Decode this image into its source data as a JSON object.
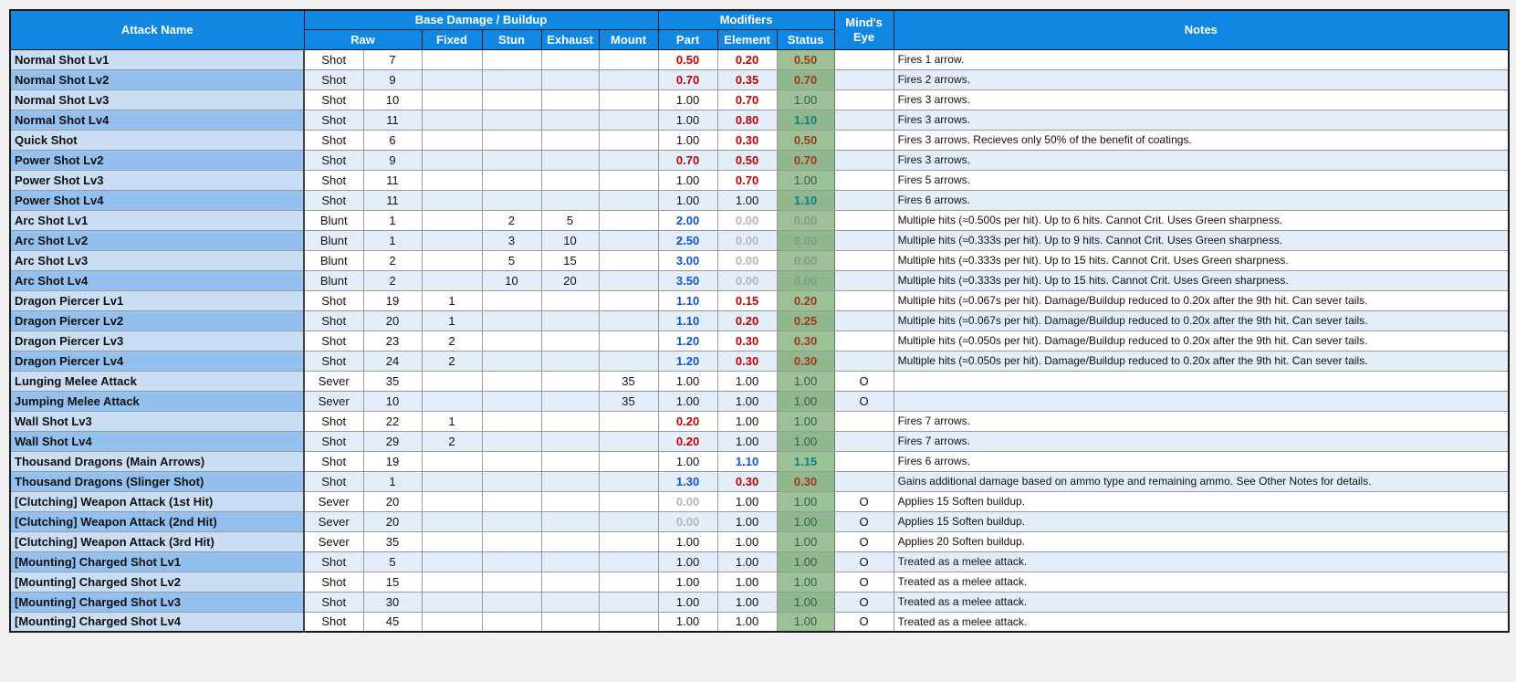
{
  "colors": {
    "header_blue": "#1187e4",
    "name_row_odd": "#c9ddf5",
    "name_row_even": "#93c0ef",
    "data_row_even": "#e4eefa",
    "status_col_odd": "#9cc197",
    "status_col_even": "#91b88c",
    "value_red": "#c00000",
    "value_blue": "#1155cc",
    "value_brick": "#9e3a1c",
    "value_dark_green": "#36603f",
    "value_teal": "#0f7f8d",
    "value_gray": "#b5b5b5"
  },
  "table": {
    "headers": {
      "attack_name": "Attack Name",
      "base_damage": "Base Damage / Buildup",
      "modifiers": "Modifiers",
      "minds_eye": "Mind's Eye",
      "notes": "Notes",
      "raw": "Raw",
      "fixed": "Fixed",
      "stun": "Stun",
      "exhaust": "Exhaust",
      "mount": "Mount",
      "part": "Part",
      "element": "Element",
      "status": "Status"
    },
    "rows": [
      {
        "name": "Normal Shot Lv1",
        "type": "Shot",
        "raw": "7",
        "fixed": "",
        "stun": "",
        "exhaust": "",
        "mount": "",
        "part": "0.50",
        "part_style": "red",
        "element": "0.20",
        "element_style": "red",
        "status": "0.50",
        "status_style": "brick",
        "eye": "",
        "notes": "Fires 1 arrow."
      },
      {
        "name": "Normal Shot Lv2",
        "type": "Shot",
        "raw": "9",
        "fixed": "",
        "stun": "",
        "exhaust": "",
        "mount": "",
        "part": "0.70",
        "part_style": "red",
        "element": "0.35",
        "element_style": "red",
        "status": "0.70",
        "status_style": "brick",
        "eye": "",
        "notes": "Fires 2 arrows."
      },
      {
        "name": "Normal Shot Lv3",
        "type": "Shot",
        "raw": "10",
        "fixed": "",
        "stun": "",
        "exhaust": "",
        "mount": "",
        "part": "1.00",
        "element": "0.70",
        "element_style": "red",
        "status": "1.00",
        "status_style": "green",
        "eye": "",
        "notes": "Fires 3 arrows."
      },
      {
        "name": "Normal Shot Lv4",
        "type": "Shot",
        "raw": "11",
        "fixed": "",
        "stun": "",
        "exhaust": "",
        "mount": "",
        "part": "1.00",
        "element": "0.80",
        "element_style": "red",
        "status": "1.10",
        "status_style": "teal",
        "eye": "",
        "notes": "Fires 3 arrows."
      },
      {
        "name": "Quick Shot",
        "type": "Shot",
        "raw": "6",
        "fixed": "",
        "stun": "",
        "exhaust": "",
        "mount": "",
        "part": "1.00",
        "element": "0.30",
        "element_style": "red",
        "status": "0.50",
        "status_style": "brick",
        "eye": "",
        "notes": "Fires 3 arrows. Recieves only 50% of the benefit of coatings."
      },
      {
        "name": "Power Shot Lv2",
        "type": "Shot",
        "raw": "9",
        "fixed": "",
        "stun": "",
        "exhaust": "",
        "mount": "",
        "part": "0.70",
        "part_style": "red",
        "element": "0.50",
        "element_style": "red",
        "status": "0.70",
        "status_style": "brick",
        "eye": "",
        "notes": "Fires 3 arrows."
      },
      {
        "name": "Power Shot Lv3",
        "type": "Shot",
        "raw": "11",
        "fixed": "",
        "stun": "",
        "exhaust": "",
        "mount": "",
        "part": "1.00",
        "element": "0.70",
        "element_style": "red",
        "status": "1.00",
        "status_style": "green",
        "eye": "",
        "notes": "Fires 5 arrows."
      },
      {
        "name": "Power Shot Lv4",
        "type": "Shot",
        "raw": "11",
        "fixed": "",
        "stun": "",
        "exhaust": "",
        "mount": "",
        "part": "1.00",
        "element": "1.00",
        "status": "1.10",
        "status_style": "teal",
        "eye": "",
        "notes": "Fires 6 arrows."
      },
      {
        "name": "Arc Shot Lv1",
        "type": "Blunt",
        "raw": "1",
        "fixed": "",
        "stun": "2",
        "exhaust": "5",
        "mount": "",
        "part": "2.00",
        "part_style": "blue",
        "element": "0.00",
        "element_style": "gray",
        "status": "0.00",
        "status_style": "sgray",
        "eye": "",
        "notes": "Multiple hits (≈0.500s per hit). Up to 6 hits. Cannot Crit. Uses Green sharpness."
      },
      {
        "name": "Arc Shot Lv2",
        "type": "Blunt",
        "raw": "1",
        "fixed": "",
        "stun": "3",
        "exhaust": "10",
        "mount": "",
        "part": "2.50",
        "part_style": "blue",
        "element": "0.00",
        "element_style": "gray",
        "status": "0.00",
        "status_style": "sgray",
        "eye": "",
        "notes": "Multiple hits (≈0.333s per hit). Up to 9 hits. Cannot Crit. Uses Green sharpness."
      },
      {
        "name": "Arc Shot Lv3",
        "type": "Blunt",
        "raw": "2",
        "fixed": "",
        "stun": "5",
        "exhaust": "15",
        "mount": "",
        "part": "3.00",
        "part_style": "blue",
        "element": "0.00",
        "element_style": "gray",
        "status": "0.00",
        "status_style": "sgray",
        "eye": "",
        "notes": "Multiple hits (≈0.333s per hit). Up to 15 hits. Cannot Crit. Uses Green sharpness."
      },
      {
        "name": "Arc Shot Lv4",
        "type": "Blunt",
        "raw": "2",
        "fixed": "",
        "stun": "10",
        "exhaust": "20",
        "mount": "",
        "part": "3.50",
        "part_style": "blue",
        "element": "0.00",
        "element_style": "gray",
        "status": "0.00",
        "status_style": "sgray",
        "eye": "",
        "notes": "Multiple hits (≈0.333s per hit). Up to 15 hits. Cannot Crit. Uses Green sharpness."
      },
      {
        "name": "Dragon Piercer Lv1",
        "type": "Shot",
        "raw": "19",
        "fixed": "1",
        "stun": "",
        "exhaust": "",
        "mount": "",
        "part": "1.10",
        "part_style": "blue",
        "element": "0.15",
        "element_style": "red",
        "status": "0.20",
        "status_style": "brick",
        "eye": "",
        "notes": "Multiple hits (≈0.067s per hit). Damage/Buildup reduced to 0.20x after the 9th hit. Can sever tails."
      },
      {
        "name": "Dragon Piercer Lv2",
        "type": "Shot",
        "raw": "20",
        "fixed": "1",
        "stun": "",
        "exhaust": "",
        "mount": "",
        "part": "1.10",
        "part_style": "blue",
        "element": "0.20",
        "element_style": "red",
        "status": "0.25",
        "status_style": "brick",
        "eye": "",
        "notes": "Multiple hits (≈0.067s per hit). Damage/Buildup reduced to 0.20x after the 9th hit. Can sever tails."
      },
      {
        "name": "Dragon Piercer Lv3",
        "type": "Shot",
        "raw": "23",
        "fixed": "2",
        "stun": "",
        "exhaust": "",
        "mount": "",
        "part": "1.20",
        "part_style": "blue",
        "element": "0.30",
        "element_style": "red",
        "status": "0.30",
        "status_style": "brick",
        "eye": "",
        "notes": "Multiple hits (≈0.050s per hit). Damage/Buildup reduced to 0.20x after the 9th hit. Can sever tails."
      },
      {
        "name": "Dragon Piercer Lv4",
        "type": "Shot",
        "raw": "24",
        "fixed": "2",
        "stun": "",
        "exhaust": "",
        "mount": "",
        "part": "1.20",
        "part_style": "blue",
        "element": "0.30",
        "element_style": "red",
        "status": "0.30",
        "status_style": "brick",
        "eye": "",
        "notes": "Multiple hits (≈0.050s per hit). Damage/Buildup reduced to 0.20x after the 9th hit. Can sever tails."
      },
      {
        "name": "Lunging Melee Attack",
        "type": "Sever",
        "raw": "35",
        "fixed": "",
        "stun": "",
        "exhaust": "",
        "mount": "35",
        "part": "1.00",
        "element": "1.00",
        "status": "1.00",
        "status_style": "green",
        "eye": "O",
        "notes": ""
      },
      {
        "name": "Jumping Melee Attack",
        "type": "Sever",
        "raw": "10",
        "fixed": "",
        "stun": "",
        "exhaust": "",
        "mount": "35",
        "part": "1.00",
        "element": "1.00",
        "status": "1.00",
        "status_style": "green",
        "eye": "O",
        "notes": ""
      },
      {
        "name": "Wall Shot Lv3",
        "type": "Shot",
        "raw": "22",
        "fixed": "1",
        "stun": "",
        "exhaust": "",
        "mount": "",
        "part": "0.20",
        "part_style": "red",
        "element": "1.00",
        "status": "1.00",
        "status_style": "green",
        "eye": "",
        "notes": "Fires 7 arrows."
      },
      {
        "name": "Wall Shot Lv4",
        "type": "Shot",
        "raw": "29",
        "fixed": "2",
        "stun": "",
        "exhaust": "",
        "mount": "",
        "part": "0.20",
        "part_style": "red",
        "element": "1.00",
        "status": "1.00",
        "status_style": "green",
        "eye": "",
        "notes": "Fires 7 arrows."
      },
      {
        "name": "Thousand Dragons (Main Arrows)",
        "type": "Shot",
        "raw": "19",
        "fixed": "",
        "stun": "",
        "exhaust": "",
        "mount": "",
        "part": "1.00",
        "element": "1.10",
        "element_style": "blue",
        "status": "1.15",
        "status_style": "teal",
        "eye": "",
        "notes": "Fires 6 arrows."
      },
      {
        "name": "Thousand Dragons (Slinger Shot)",
        "type": "Shot",
        "raw": "1",
        "fixed": "",
        "stun": "",
        "exhaust": "",
        "mount": "",
        "part": "1.30",
        "part_style": "blue",
        "element": "0.30",
        "element_style": "red",
        "status": "0.30",
        "status_style": "brick",
        "eye": "",
        "notes": "Gains additional damage based on ammo type and remaining ammo. See Other Notes for details."
      },
      {
        "name": "[Clutching] Weapon Attack (1st Hit)",
        "type": "Sever",
        "raw": "20",
        "fixed": "",
        "stun": "",
        "exhaust": "",
        "mount": "",
        "part": "0.00",
        "part_style": "gray",
        "element": "1.00",
        "status": "1.00",
        "status_style": "green",
        "eye": "O",
        "notes": "Applies 15 Soften buildup."
      },
      {
        "name": "[Clutching] Weapon Attack (2nd Hit)",
        "type": "Sever",
        "raw": "20",
        "fixed": "",
        "stun": "",
        "exhaust": "",
        "mount": "",
        "part": "0.00",
        "part_style": "gray",
        "element": "1.00",
        "status": "1.00",
        "status_style": "green",
        "eye": "O",
        "notes": "Applies 15 Soften buildup."
      },
      {
        "name": "[Clutching] Weapon Attack (3rd Hit)",
        "type": "Sever",
        "raw": "35",
        "fixed": "",
        "stun": "",
        "exhaust": "",
        "mount": "",
        "part": "1.00",
        "element": "1.00",
        "status": "1.00",
        "status_style": "green",
        "eye": "O",
        "notes": "Applies 20 Soften buildup."
      },
      {
        "name": "[Mounting] Charged Shot Lv1",
        "type": "Shot",
        "raw": "5",
        "fixed": "",
        "stun": "",
        "exhaust": "",
        "mount": "",
        "part": "1.00",
        "element": "1.00",
        "status": "1.00",
        "status_style": "green",
        "eye": "O",
        "notes": "Treated as a melee attack."
      },
      {
        "name": "[Mounting] Charged Shot Lv2",
        "type": "Shot",
        "raw": "15",
        "fixed": "",
        "stun": "",
        "exhaust": "",
        "mount": "",
        "part": "1.00",
        "element": "1.00",
        "status": "1.00",
        "status_style": "green",
        "eye": "O",
        "notes": "Treated as a melee attack."
      },
      {
        "name": "[Mounting] Charged Shot Lv3",
        "type": "Shot",
        "raw": "30",
        "fixed": "",
        "stun": "",
        "exhaust": "",
        "mount": "",
        "part": "1.00",
        "element": "1.00",
        "status": "1.00",
        "status_style": "green",
        "eye": "O",
        "notes": "Treated as a melee attack."
      },
      {
        "name": "[Mounting] Charged Shot Lv4",
        "type": "Shot",
        "raw": "45",
        "fixed": "",
        "stun": "",
        "exhaust": "",
        "mount": "",
        "part": "1.00",
        "element": "1.00",
        "status": "1.00",
        "status_style": "green",
        "eye": "O",
        "notes": "Treated as a melee attack."
      }
    ]
  }
}
